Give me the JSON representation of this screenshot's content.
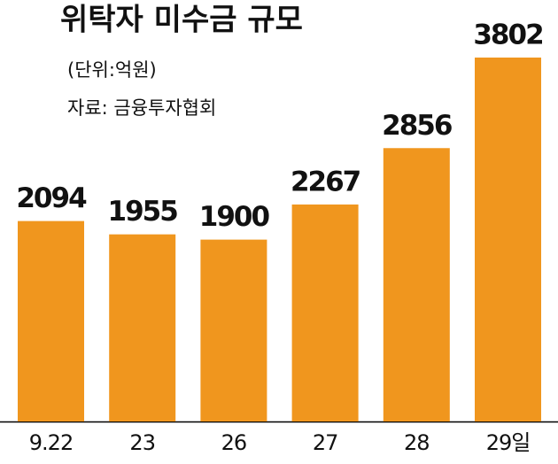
{
  "chart_data": {
    "type": "bar",
    "title": "위탁자 미수금 규모",
    "subtitle": "(단위:억원)",
    "source": "자료: 금융투자협회",
    "categories": [
      "9.22",
      "23",
      "26",
      "27",
      "28",
      "29일"
    ],
    "values": [
      2094,
      1955,
      1900,
      2267,
      2856,
      3802
    ],
    "color": "#f0961e"
  }
}
